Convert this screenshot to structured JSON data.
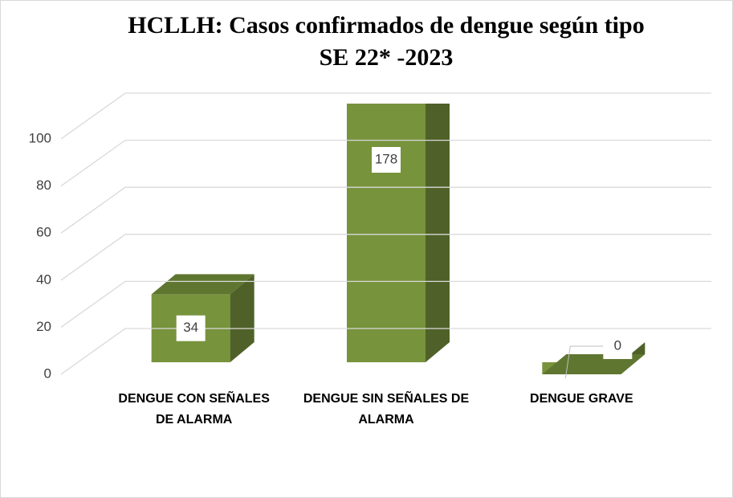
{
  "chart_data": {
    "type": "bar3d",
    "title": "HCLLH: Casos confirmados de dengue según tipo",
    "subtitle": "SE 22* -2023",
    "categories": [
      "DENGUE CON SEÑALES DE ALARMA",
      "DENGUE SIN SEÑALES DE ALARMA",
      "DENGUE GRAVE"
    ],
    "values": [
      34,
      178,
      0
    ],
    "color": "#77933c",
    "ylim": [
      0,
      100
    ],
    "yticks": [
      0,
      20,
      40,
      60,
      80,
      100
    ],
    "grid": true
  }
}
